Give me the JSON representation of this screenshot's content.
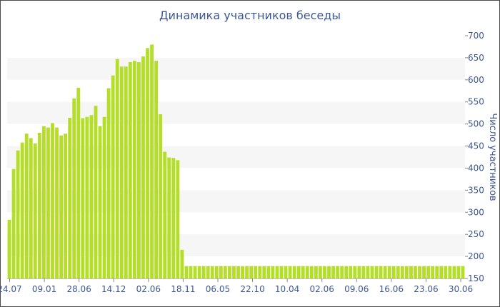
{
  "chart_data": {
    "type": "bar",
    "title": "Динамика участников беседы",
    "xlabel": "",
    "ylabel": "Число участников",
    "ylim": [
      150,
      700
    ],
    "yticks": [
      150,
      200,
      250,
      300,
      350,
      400,
      450,
      500,
      550,
      600,
      650,
      700
    ],
    "xtick_labels": [
      "24.07",
      "09.01",
      "28.06",
      "14.12",
      "02.06",
      "18.11",
      "06.05",
      "22.10",
      "10.04",
      "02.06",
      "09.06",
      "16.06",
      "23.06",
      "30.06"
    ],
    "grid": "horizontal bands",
    "bar_color": "#b5de2b",
    "series": [
      {
        "values": [
          283,
          398,
          440,
          458,
          478,
          468,
          456,
          480,
          495,
          492,
          502,
          492,
          474,
          478,
          514,
          558,
          582,
          513,
          516,
          520,
          541,
          495,
          516,
          581,
          610,
          647,
          630,
          630,
          640,
          643,
          640,
          653,
          672,
          680,
          643,
          522,
          437,
          424,
          423,
          418,
          215,
          178,
          178,
          178,
          178,
          178,
          178,
          178,
          178,
          178,
          178,
          178,
          178,
          178,
          178,
          178,
          178,
          178,
          178,
          178,
          178,
          178,
          178,
          178,
          178,
          178,
          178,
          178,
          178,
          178,
          178,
          178,
          178,
          178,
          178,
          178,
          178,
          178,
          178,
          178,
          178,
          178,
          178,
          178,
          178,
          178,
          178,
          178,
          178,
          178,
          178,
          178,
          178,
          178,
          178,
          178,
          178,
          178,
          178,
          178,
          178,
          178,
          178,
          178,
          178,
          178
        ]
      }
    ]
  }
}
